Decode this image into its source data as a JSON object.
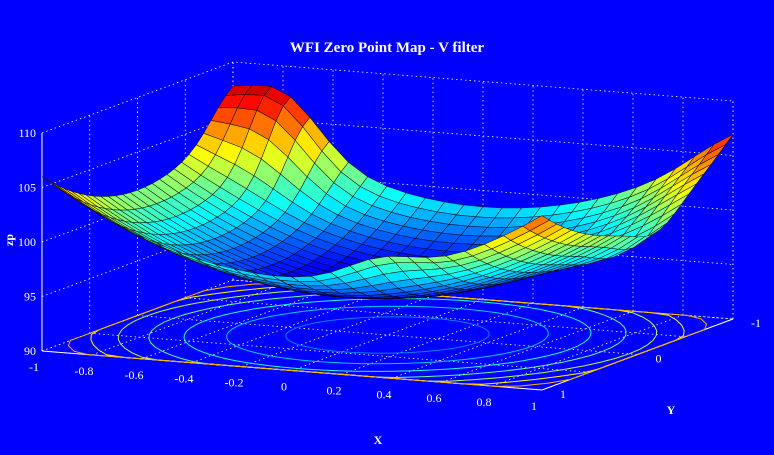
{
  "chart_data": {
    "type": "surface",
    "title": "WFI Zero Point Map - V filter",
    "xlabel": "X",
    "ylabel": "Y",
    "zlabel": "zp",
    "xlim": [
      -1,
      1
    ],
    "ylim": [
      -1,
      1
    ],
    "zlim": [
      90,
      110
    ],
    "x_ticks": [
      "-1",
      "-0.8",
      "-0.6",
      "-0.4",
      "-0.2",
      "0",
      "0.2",
      "0.4",
      "0.6",
      "0.8",
      "1"
    ],
    "y_ticks": [
      "-1",
      "0",
      "1"
    ],
    "z_ticks": [
      "90",
      "95",
      "100",
      "105",
      "110"
    ],
    "surface_shape": "bowl",
    "approx_min_zp": 94,
    "approx_max_zp": 108.5,
    "grid": true,
    "floor_contours": true,
    "colormap": "jet"
  }
}
